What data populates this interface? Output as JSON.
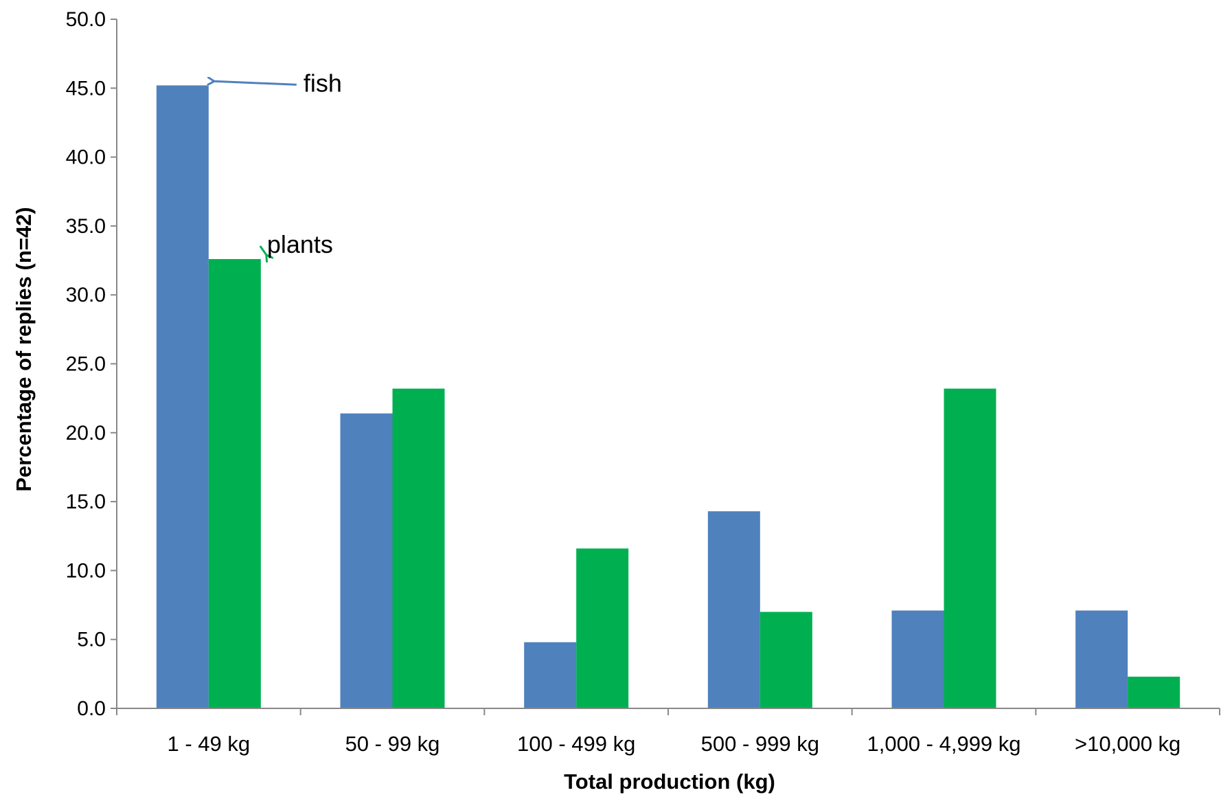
{
  "chart_data": {
    "type": "bar",
    "categories": [
      "1 - 49 kg",
      "50 - 99 kg",
      "100 - 499 kg",
      "500 - 999 kg",
      "1,000 - 4,999 kg",
      ">10,000 kg"
    ],
    "series": [
      {
        "name": "fish",
        "color": "#4F81BD",
        "values": [
          45.2,
          21.4,
          4.8,
          14.3,
          7.1,
          7.1
        ]
      },
      {
        "name": "plants",
        "color": "#00B050",
        "values": [
          32.6,
          23.2,
          11.6,
          7.0,
          23.2,
          2.3
        ]
      }
    ],
    "xlabel": "Total production (kg)",
    "ylabel": "Percentage of replies (n=42)",
    "ylim": [
      0,
      50
    ],
    "yticks": [
      0,
      5,
      10,
      15,
      20,
      25,
      30,
      35,
      40,
      45,
      50
    ],
    "ytick_labels": [
      "0.0",
      "5.0",
      "10.0",
      "15.0",
      "20.0",
      "25.0",
      "30.0",
      "35.0",
      "40.0",
      "45.0",
      "50.0"
    ],
    "grid": false,
    "legend": "none",
    "annotations": [
      {
        "text": "fish",
        "series": "fish",
        "category": "1 - 49 kg",
        "arrow_color": "#4F81BD"
      },
      {
        "text": "plants",
        "series": "plants",
        "category": "1 - 49 kg",
        "arrow_color": "#00B050"
      }
    ]
  }
}
